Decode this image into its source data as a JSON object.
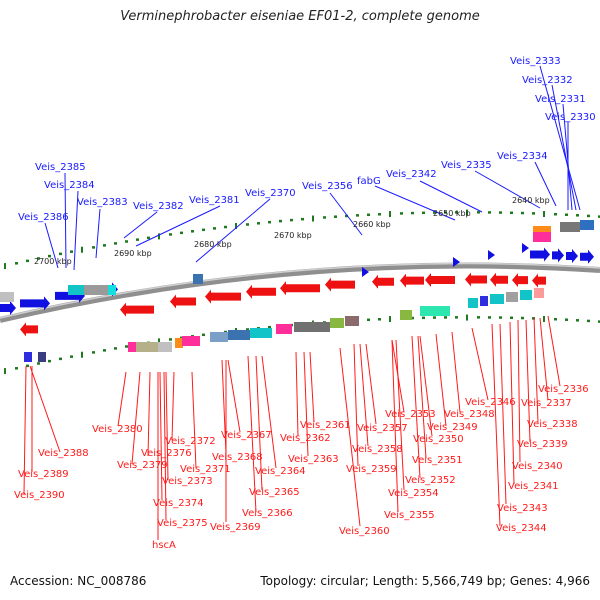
{
  "title": "Verminephrobacter eiseniae EF01-2, complete genome",
  "footer": {
    "accession": "Accession: NC_008786",
    "summary": "Topology: circular; Length: 5,566,749 bp; Genes: 4,966"
  },
  "colors": {
    "plus_label": "#1a1aff",
    "minus_label": "#ff1a1a",
    "tick": "#1f7a1f",
    "backbone": "#9a9a9a"
  },
  "kbp_ticks": [
    "2700 kbp",
    "2690 kbp",
    "2680 kbp",
    "2670 kbp",
    "2660 kbp",
    "2650 kbp",
    "2640 kbp"
  ],
  "plus_labels": [
    "Veis_2333",
    "Veis_2332",
    "Veis_2331",
    "Veis_2330",
    "Veis_2334",
    "Veis_2335",
    "Veis_2342",
    "fabG",
    "Veis_2356",
    "Veis_2370",
    "Veis_2381",
    "Veis_2382",
    "Veis_2383",
    "Veis_2384",
    "Veis_2385",
    "Veis_2386"
  ],
  "minus_labels": [
    "Veis_2380",
    "Veis_2376",
    "Veis_2372",
    "Veis_2379",
    "Veis_2371",
    "Veis_2373",
    "Veis_2374",
    "Veis_2375",
    "hscA",
    "Veis_2367",
    "Veis_2368",
    "Veis_2364",
    "Veis_2365",
    "Veis_2366",
    "Veis_2369",
    "Veis_2361",
    "Veis_2362",
    "Veis_2363",
    "Veis_2360",
    "Veis_2357",
    "Veis_2358",
    "Veis_2359",
    "Veis_2353",
    "Veis_2354",
    "Veis_2355",
    "Veis_2350",
    "Veis_2351",
    "Veis_2352",
    "Veis_2349",
    "Veis_2348",
    "Veis_2346",
    "Veis_2337",
    "Veis_2336",
    "Veis_2338",
    "Veis_2339",
    "Veis_2340",
    "Veis_2341",
    "Veis_2343",
    "Veis_2344",
    "Veis_2388",
    "Veis_2389",
    "Veis_2390"
  ]
}
